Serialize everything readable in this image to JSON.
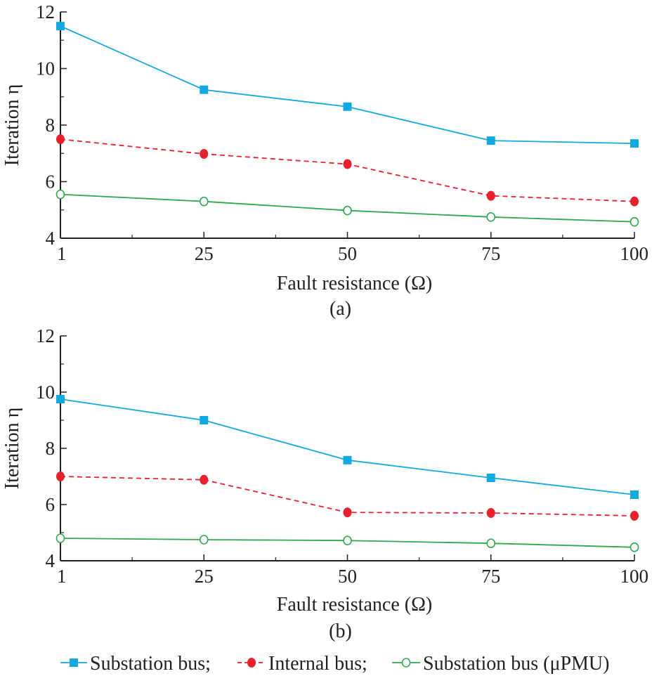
{
  "chart_data": [
    {
      "type": "line",
      "panel_label": "(a)",
      "xlabel": "Fault resistance (Ω)",
      "ylabel": "Iteration η",
      "categories": [
        "1",
        "25",
        "50",
        "75",
        "100"
      ],
      "ylim": [
        4,
        12
      ],
      "yticks": [
        "4",
        "6",
        "8",
        "10",
        "12"
      ],
      "grid": false,
      "series": [
        {
          "name": "Substation bus",
          "color": "#12a8e0",
          "marker": "square",
          "line": "solid",
          "values": [
            11.5,
            9.25,
            8.65,
            7.45,
            7.35
          ]
        },
        {
          "name": "Internal bus",
          "color": "#e8212e",
          "marker": "filled-circle",
          "line": "dashed",
          "values": [
            7.5,
            6.98,
            6.62,
            5.5,
            5.3
          ]
        },
        {
          "name": "Substation bus (μPMU)",
          "color": "#2fa84f",
          "marker": "open-circle",
          "line": "solid",
          "values": [
            5.55,
            5.3,
            4.98,
            4.75,
            4.58
          ]
        }
      ]
    },
    {
      "type": "line",
      "panel_label": "(b)",
      "xlabel": "Fault resistance (Ω)",
      "ylabel": "Iteration η",
      "categories": [
        "1",
        "25",
        "50",
        "75",
        "100"
      ],
      "ylim": [
        4,
        12
      ],
      "yticks": [
        "4",
        "6",
        "8",
        "10",
        "12"
      ],
      "grid": false,
      "series": [
        {
          "name": "Substation bus",
          "color": "#12a8e0",
          "marker": "square",
          "line": "solid",
          "values": [
            9.75,
            9.0,
            7.58,
            6.95,
            6.35
          ]
        },
        {
          "name": "Internal bus",
          "color": "#e8212e",
          "marker": "filled-circle",
          "line": "dashed",
          "values": [
            7.0,
            6.88,
            5.72,
            5.7,
            5.6
          ]
        },
        {
          "name": "Substation bus (μPMU)",
          "color": "#2fa84f",
          "marker": "open-circle",
          "line": "solid",
          "values": [
            4.8,
            4.75,
            4.72,
            4.62,
            4.48
          ]
        }
      ]
    }
  ],
  "legend": {
    "position": "bottom",
    "items": [
      {
        "label": "Substation bus;",
        "series": 0
      },
      {
        "label": "Internal bus;",
        "series": 1
      },
      {
        "label": "Substation bus (μPMU)",
        "series": 2
      }
    ]
  }
}
